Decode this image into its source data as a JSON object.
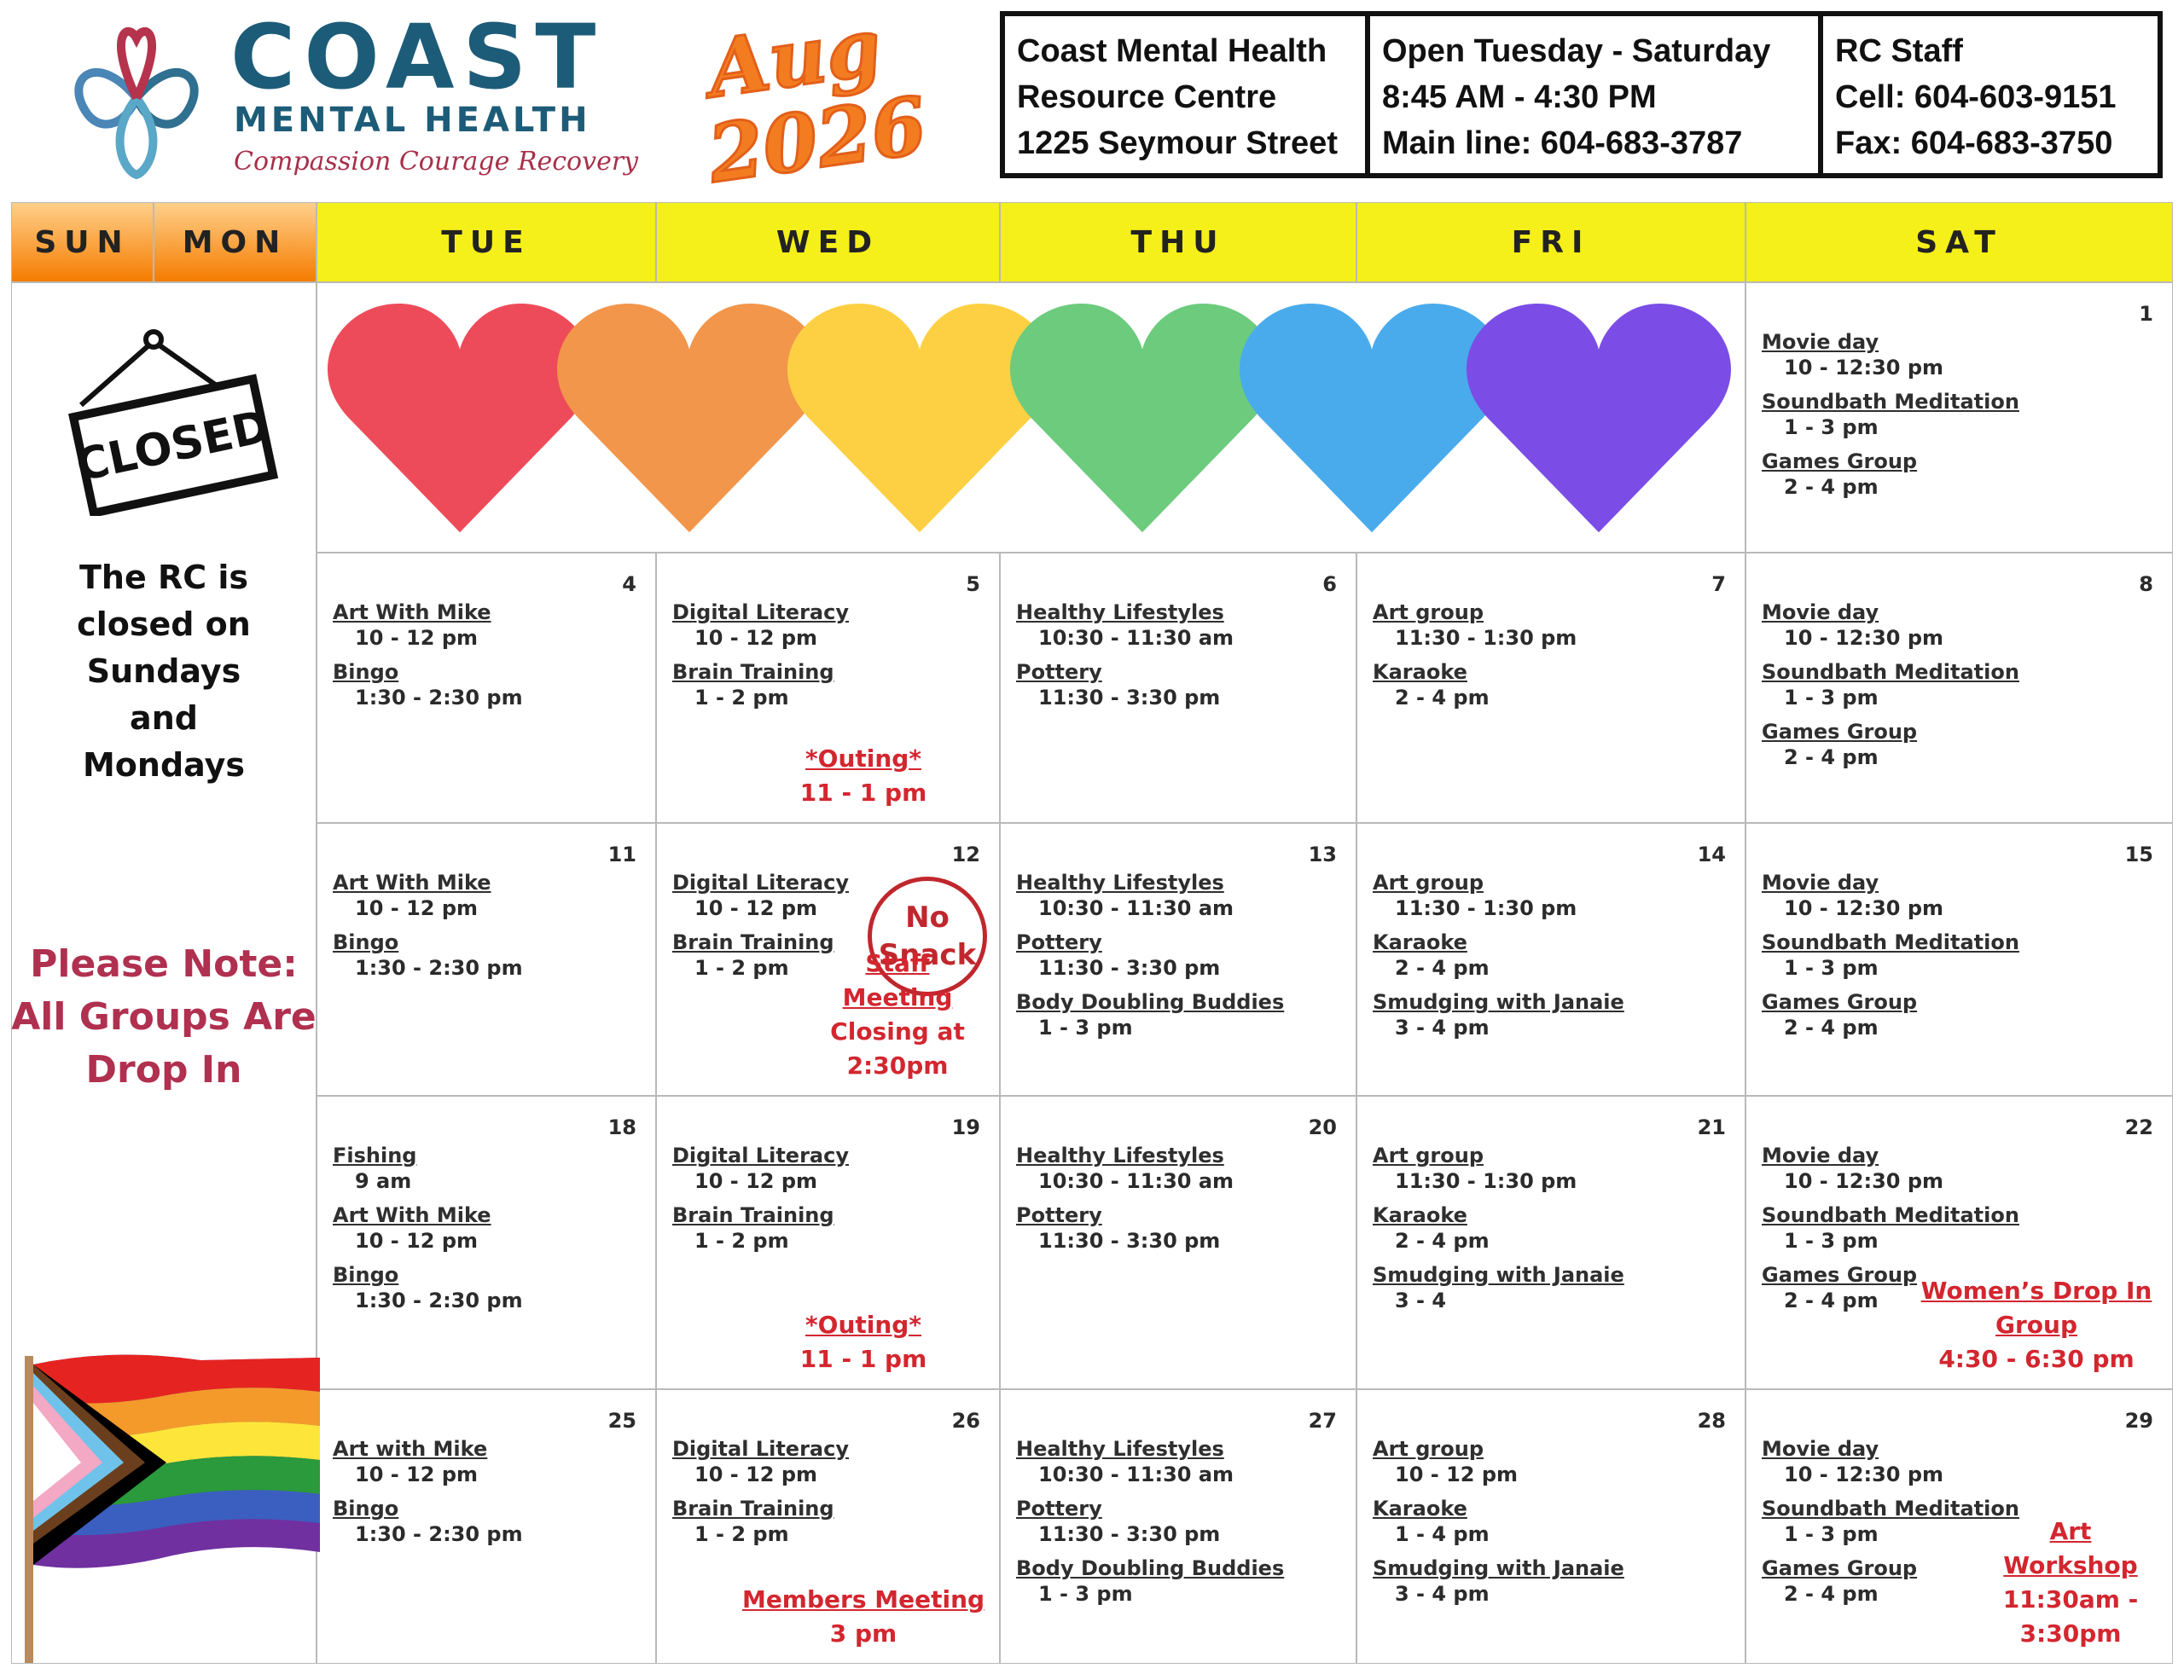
{
  "header": {
    "logo": {
      "name": "COAST",
      "subtitle": "MENTAL HEALTH",
      "tagline": "Compassion Courage Recovery"
    },
    "month": "Aug",
    "year": "2026",
    "info": [
      [
        "Coast Mental Health",
        "Resource Centre",
        "1225 Seymour Street"
      ],
      [
        "Open Tuesday - Saturday",
        "8:45 AM - 4:30 PM",
        "Main line: 604-683-3787"
      ],
      [
        "RC Staff",
        "Cell: 604-603-9151",
        "Fax: 604-683-3750"
      ]
    ]
  },
  "days": [
    "SUN",
    "MON",
    "TUE",
    "WED",
    "THU",
    "FRI",
    "SAT"
  ],
  "sidebar": {
    "sign": "CLOSED",
    "closed_text": [
      "The RC is",
      "closed on",
      "Sundays",
      "and",
      "Mondays"
    ],
    "note": [
      "Please Note:",
      "All Groups Are",
      "Drop In"
    ]
  },
  "weeks": [
    {
      "sat": {
        "day": "1",
        "events": [
          {
            "name": "Movie day",
            "time": "10 - 12:30 pm"
          },
          {
            "name": "Soundbath Meditation",
            "time": "1 - 3 pm"
          },
          {
            "name": "Games Group",
            "time": "2 - 4 pm"
          }
        ]
      }
    },
    {
      "tue": {
        "day": "4",
        "events": [
          {
            "name": "Art With Mike",
            "time": "10 - 12 pm"
          },
          {
            "name": "Bingo",
            "time": "1:30 - 2:30 pm"
          }
        ]
      },
      "wed": {
        "day": "5",
        "events": [
          {
            "name": "Digital Literacy",
            "time": "10 - 12 pm"
          },
          {
            "name": "Brain Training",
            "time": "1 - 2 pm"
          }
        ],
        "note": {
          "name": "*Outing*",
          "time": "11 - 1 pm"
        }
      },
      "thu": {
        "day": "6",
        "events": [
          {
            "name": "Healthy Lifestyles",
            "time": "10:30 - 11:30 am"
          },
          {
            "name": "Pottery",
            "time": "11:30 - 3:30 pm"
          }
        ]
      },
      "fri": {
        "day": "7",
        "events": [
          {
            "name": "Art group",
            "time": "11:30 - 1:30 pm"
          },
          {
            "name": "Karaoke",
            "time": "2 - 4 pm"
          }
        ]
      },
      "sat": {
        "day": "8",
        "events": [
          {
            "name": "Movie day",
            "time": "10 - 12:30 pm"
          },
          {
            "name": "Soundbath Meditation",
            "time": "1 - 3 pm"
          },
          {
            "name": "Games Group",
            "time": "2 - 4 pm"
          }
        ]
      }
    },
    {
      "tue": {
        "day": "11",
        "events": [
          {
            "name": "Art With Mike",
            "time": "10 - 12 pm"
          },
          {
            "name": "Bingo",
            "time": "1:30 - 2:30 pm"
          }
        ]
      },
      "wed": {
        "day": "12",
        "events": [
          {
            "name": "Digital Literacy",
            "time": "10 - 12 pm"
          },
          {
            "name": "Brain Training",
            "time": "1 - 2 pm"
          }
        ],
        "stamp": "No Snack",
        "note": {
          "name": "Staff Meeting",
          "time": "Closing at 2:30pm"
        }
      },
      "thu": {
        "day": "13",
        "events": [
          {
            "name": "Healthy Lifestyles",
            "time": "10:30 - 11:30 am"
          },
          {
            "name": "Pottery",
            "time": "11:30 - 3:30 pm"
          },
          {
            "name": "Body Doubling Buddies",
            "time": "1 - 3 pm"
          }
        ]
      },
      "fri": {
        "day": "14",
        "events": [
          {
            "name": "Art group",
            "time": "11:30 - 1:30 pm"
          },
          {
            "name": "Karaoke",
            "time": "2 - 4 pm"
          },
          {
            "name": "Smudging with Janaie",
            "time": "3 - 4 pm"
          }
        ]
      },
      "sat": {
        "day": "15",
        "events": [
          {
            "name": "Movie day",
            "time": "10 - 12:30 pm"
          },
          {
            "name": "Soundbath Meditation",
            "time": "1 - 3 pm"
          },
          {
            "name": "Games Group",
            "time": "2 - 4 pm"
          }
        ]
      }
    },
    {
      "tue": {
        "day": "18",
        "events": [
          {
            "name": "Fishing",
            "time": "9 am"
          },
          {
            "name": "Art With Mike",
            "time": "10 - 12 pm"
          },
          {
            "name": "Bingo",
            "time": "1:30 - 2:30 pm"
          }
        ]
      },
      "wed": {
        "day": "19",
        "events": [
          {
            "name": "Digital Literacy",
            "time": "10 - 12 pm"
          },
          {
            "name": "Brain Training",
            "time": "1 - 2 pm"
          }
        ],
        "note": {
          "name": "*Outing*",
          "time": "11 - 1 pm"
        }
      },
      "thu": {
        "day": "20",
        "events": [
          {
            "name": "Healthy Lifestyles",
            "time": "10:30 - 11:30 am"
          },
          {
            "name": "Pottery",
            "time": "11:30 - 3:30 pm"
          }
        ]
      },
      "fri": {
        "day": "21",
        "events": [
          {
            "name": "Art group",
            "time": "11:30 - 1:30 pm"
          },
          {
            "name": "Karaoke",
            "time": "2 - 4 pm"
          },
          {
            "name": "Smudging with Janaie",
            "time": "3 - 4"
          }
        ]
      },
      "sat": {
        "day": "22",
        "events": [
          {
            "name": "Movie day",
            "time": "10 - 12:30 pm"
          },
          {
            "name": "Soundbath Meditation",
            "time": "1 - 3 pm"
          },
          {
            "name": "Games Group",
            "time": "2 - 4 pm"
          }
        ],
        "note": {
          "name": "Women’s Drop In Group",
          "time": "4:30 - 6:30 pm"
        }
      }
    },
    {
      "tue": {
        "day": "25",
        "events": [
          {
            "name": "Art with Mike",
            "time": "10 - 12 pm"
          },
          {
            "name": "Bingo",
            "time": "1:30 - 2:30 pm"
          }
        ]
      },
      "wed": {
        "day": "26",
        "events": [
          {
            "name": "Digital Literacy",
            "time": "10 - 12 pm"
          },
          {
            "name": "Brain Training",
            "time": "1 - 2 pm"
          }
        ],
        "note": {
          "name": "Members Meeting",
          "time": "3 pm"
        }
      },
      "thu": {
        "day": "27",
        "events": [
          {
            "name": "Healthy Lifestyles",
            "time": "10:30 - 11:30 am"
          },
          {
            "name": "Pottery",
            "time": "11:30 - 3:30 pm"
          },
          {
            "name": "Body Doubling Buddies",
            "time": "1 - 3 pm"
          }
        ]
      },
      "fri": {
        "day": "28",
        "events": [
          {
            "name": "Art group",
            "time": "10 - 12 pm"
          },
          {
            "name": "Karaoke",
            "time": "1 - 4 pm"
          },
          {
            "name": "Smudging with Janaie",
            "time": "3 - 4 pm"
          }
        ]
      },
      "sat": {
        "day": "29",
        "events": [
          {
            "name": "Movie day",
            "time": "10 - 12:30 pm"
          },
          {
            "name": "Soundbath Meditation",
            "time": "1 - 3 pm"
          },
          {
            "name": "Games Group",
            "time": "2 - 4 pm"
          }
        ],
        "note": {
          "name": "Art Workshop",
          "time": "11:30am - 3:30pm"
        }
      }
    }
  ]
}
